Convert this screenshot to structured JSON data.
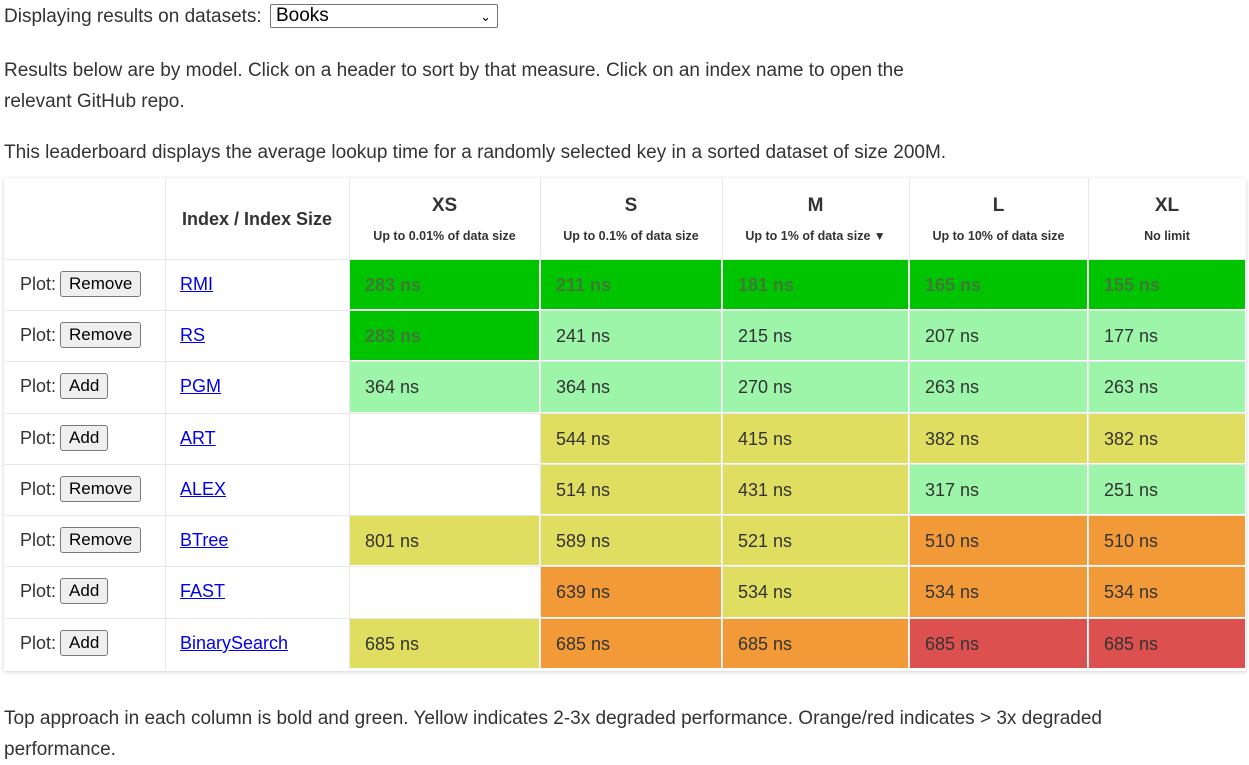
{
  "dataset_selector": {
    "label": "Displaying results on datasets:",
    "selected": "Books",
    "chevron_icon": "chevron-down"
  },
  "intro": "Results below are by model. Click on a header to sort by that measure. Click on an index name to open the relevant GitHub repo.",
  "description": "This leaderboard displays the average lookup time for a randomly selected key in a sorted dataset of size 200M.",
  "table": {
    "index_header": "Index / Index Size",
    "plot_label": "Plot:",
    "sort_icon": "triangle-down",
    "columns": [
      {
        "size": "XS",
        "limit": "Up to 0.01% of data size",
        "sorted": false
      },
      {
        "size": "S",
        "limit": "Up to 0.1% of data size",
        "sorted": false
      },
      {
        "size": "M",
        "limit": "Up to 1% of data size",
        "sorted": true
      },
      {
        "size": "L",
        "limit": "Up to 10% of data size",
        "sorted": false
      },
      {
        "size": "XL",
        "limit": "No limit",
        "sorted": false
      }
    ],
    "rows": [
      {
        "index": "RMI",
        "action": "Remove",
        "results": [
          {
            "text": "283 ns",
            "tier": "best"
          },
          {
            "text": "211 ns",
            "tier": "best"
          },
          {
            "text": "181 ns",
            "tier": "best"
          },
          {
            "text": "165 ns",
            "tier": "best"
          },
          {
            "text": "155 ns",
            "tier": "best"
          }
        ]
      },
      {
        "index": "RS",
        "action": "Remove",
        "results": [
          {
            "text": "283 ns",
            "tier": "best"
          },
          {
            "text": "241 ns",
            "tier": "good"
          },
          {
            "text": "215 ns",
            "tier": "good"
          },
          {
            "text": "207 ns",
            "tier": "good"
          },
          {
            "text": "177 ns",
            "tier": "good"
          }
        ]
      },
      {
        "index": "PGM",
        "action": "Add",
        "results": [
          {
            "text": "364 ns",
            "tier": "good"
          },
          {
            "text": "364 ns",
            "tier": "good"
          },
          {
            "text": "270 ns",
            "tier": "good"
          },
          {
            "text": "263 ns",
            "tier": "good"
          },
          {
            "text": "263 ns",
            "tier": "good"
          }
        ]
      },
      {
        "index": "ART",
        "action": "Add",
        "results": [
          {
            "text": "",
            "tier": "none"
          },
          {
            "text": "544 ns",
            "tier": "yellow"
          },
          {
            "text": "415 ns",
            "tier": "yellow"
          },
          {
            "text": "382 ns",
            "tier": "yellow"
          },
          {
            "text": "382 ns",
            "tier": "yellow"
          }
        ]
      },
      {
        "index": "ALEX",
        "action": "Remove",
        "results": [
          {
            "text": "",
            "tier": "none"
          },
          {
            "text": "514 ns",
            "tier": "yellow"
          },
          {
            "text": "431 ns",
            "tier": "yellow"
          },
          {
            "text": "317 ns",
            "tier": "good"
          },
          {
            "text": "251 ns",
            "tier": "good"
          }
        ]
      },
      {
        "index": "BTree",
        "action": "Remove",
        "results": [
          {
            "text": "801 ns",
            "tier": "yellow"
          },
          {
            "text": "589 ns",
            "tier": "yellow"
          },
          {
            "text": "521 ns",
            "tier": "yellow"
          },
          {
            "text": "510 ns",
            "tier": "orange"
          },
          {
            "text": "510 ns",
            "tier": "orange"
          }
        ]
      },
      {
        "index": "FAST",
        "action": "Add",
        "results": [
          {
            "text": "",
            "tier": "none"
          },
          {
            "text": "639 ns",
            "tier": "orange"
          },
          {
            "text": "534 ns",
            "tier": "yellow"
          },
          {
            "text": "534 ns",
            "tier": "orange"
          },
          {
            "text": "534 ns",
            "tier": "orange"
          }
        ]
      },
      {
        "index": "BinarySearch",
        "action": "Add",
        "results": [
          {
            "text": "685 ns",
            "tier": "yellow"
          },
          {
            "text": "685 ns",
            "tier": "orange"
          },
          {
            "text": "685 ns",
            "tier": "orange"
          },
          {
            "text": "685 ns",
            "tier": "red"
          },
          {
            "text": "685 ns",
            "tier": "red"
          }
        ]
      }
    ]
  },
  "tier_colors": {
    "best": "#00c400",
    "good": "#9cf5a9",
    "yellow": "#e0de60",
    "orange": "#f39a38",
    "red": "#dd5050",
    "none": "#ffffff"
  },
  "footnote": "Top approach in each column is bold and green. Yellow indicates 2-3x degraded performance. Orange/red indicates > 3x degraded performance."
}
